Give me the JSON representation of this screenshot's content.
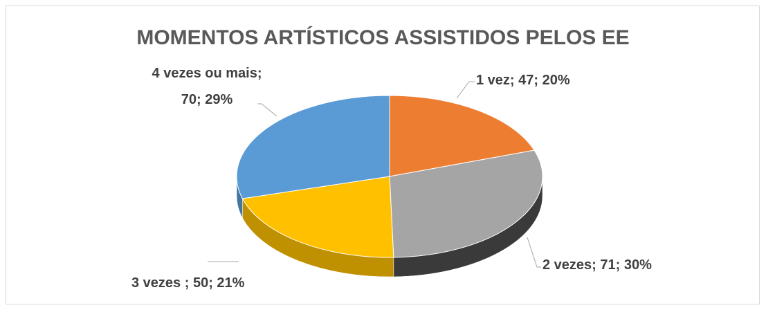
{
  "chart_data": {
    "type": "pie3d",
    "title": "MOMENTOS ARTÍSTICOS ASSISTIDOS PELOS EE",
    "values": [
      47,
      71,
      50,
      70
    ],
    "value_labels": [
      "1 vez; 47; 20%",
      "2 vezes; 71; 30%",
      "3 vezes ; 50; 21%",
      "4 vezes ou mais; 70; 29%"
    ],
    "colors": [
      "#ED7D31",
      "#A5A5A5",
      "#FFC000",
      "#5B9BD5"
    ]
  }
}
